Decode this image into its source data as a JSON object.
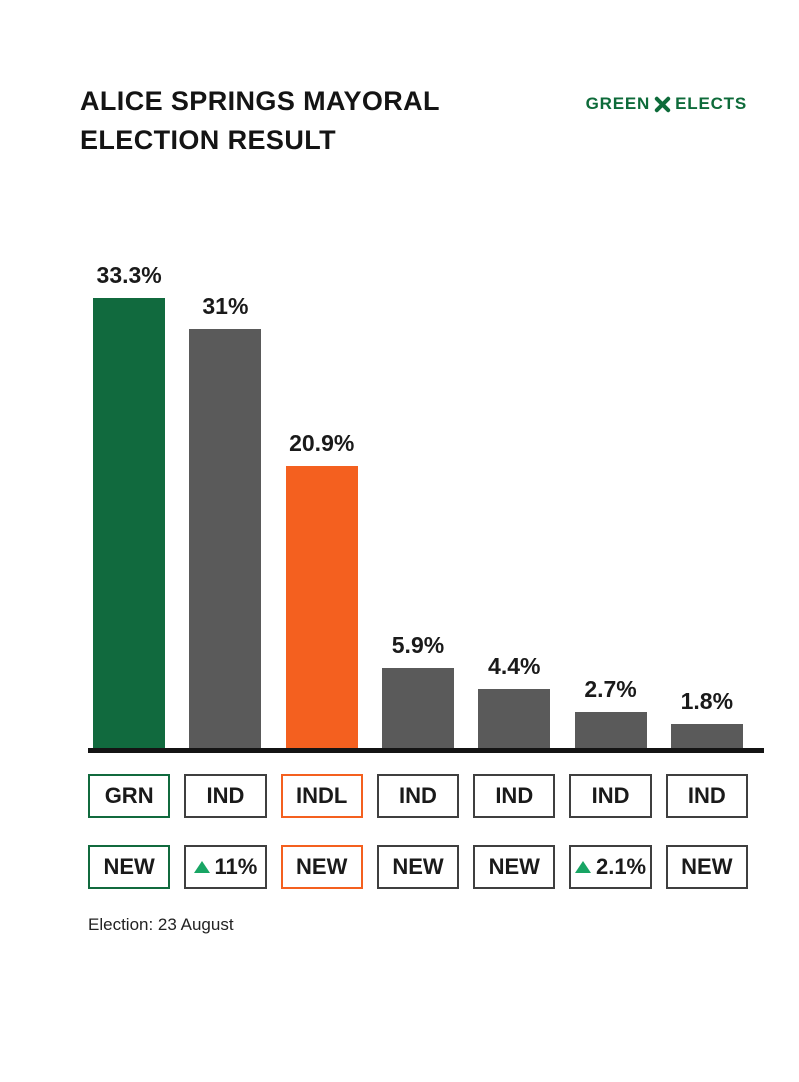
{
  "header": {
    "title_line1": "ALICE SPRINGS MAYORAL",
    "title_line2": "ELECTION RESULT",
    "logo": {
      "left": "GREEN",
      "right": "ELECTS",
      "icon": "knot-x-icon"
    }
  },
  "footer": {
    "note": "Election: 23 August"
  },
  "colors": {
    "brand_green": "#0e6b3a",
    "bar_green": "#116a3e",
    "bar_gray": "#5a5a5a",
    "bar_orange": "#f4601f",
    "arrow_green": "#18a564",
    "baseline_black": "#141414",
    "box_border_gray": "#3f3f3f",
    "text_black": "#141414"
  },
  "chart_data": {
    "type": "bar",
    "title": "Alice Springs Mayoral Election Result",
    "xlabel": "",
    "ylabel": "",
    "ylim": [
      0,
      34
    ],
    "grid": false,
    "legend": false,
    "categories": [
      "GRN",
      "IND",
      "INDL",
      "IND",
      "IND",
      "IND",
      "IND"
    ],
    "values": [
      33.3,
      31,
      20.9,
      5.9,
      4.4,
      2.7,
      1.8
    ],
    "value_labels": [
      "33.3%",
      "31%",
      "20.9%",
      "5.9%",
      "4.4%",
      "2.7%",
      "1.8%"
    ],
    "swing_labels": [
      "NEW",
      "▲11%",
      "NEW",
      "NEW",
      "NEW",
      "▲2.1%",
      "NEW"
    ],
    "columns": [
      {
        "party": "GRN",
        "value": 33.3,
        "value_label": "33.3%",
        "color": "#116a3e",
        "box_border": "#116a3e",
        "swing": "NEW",
        "swing_up": false
      },
      {
        "party": "IND",
        "value": 31,
        "value_label": "31%",
        "color": "#5a5a5a",
        "box_border": "#3f3f3f",
        "swing": "11%",
        "swing_up": true
      },
      {
        "party": "INDL",
        "value": 20.9,
        "value_label": "20.9%",
        "color": "#f4601f",
        "box_border": "#f4601f",
        "swing": "NEW",
        "swing_up": false
      },
      {
        "party": "IND",
        "value": 5.9,
        "value_label": "5.9%",
        "color": "#5a5a5a",
        "box_border": "#3f3f3f",
        "swing": "NEW",
        "swing_up": false
      },
      {
        "party": "IND",
        "value": 4.4,
        "value_label": "4.4%",
        "color": "#5a5a5a",
        "box_border": "#3f3f3f",
        "swing": "NEW",
        "swing_up": false
      },
      {
        "party": "IND",
        "value": 2.7,
        "value_label": "2.7%",
        "color": "#5a5a5a",
        "box_border": "#3f3f3f",
        "swing": "2.1%",
        "swing_up": true
      },
      {
        "party": "IND",
        "value": 1.8,
        "value_label": "1.8%",
        "color": "#5a5a5a",
        "box_border": "#3f3f3f",
        "swing": "NEW",
        "swing_up": false
      }
    ]
  }
}
